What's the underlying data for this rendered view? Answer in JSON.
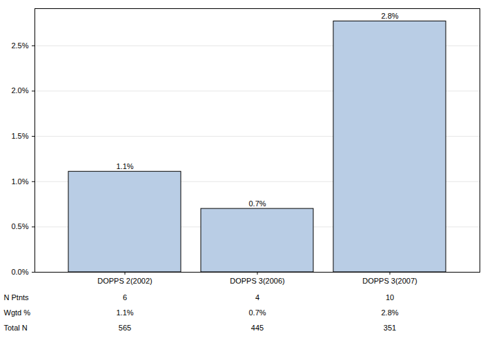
{
  "chart_data": {
    "type": "bar",
    "categories": [
      "DOPPS 2(2002)",
      "DOPPS 3(2006)",
      "DOPPS 3(2007)"
    ],
    "values": [
      1.11,
      0.7,
      2.77
    ],
    "value_labels": [
      "1.1%",
      "0.7%",
      "2.8%"
    ],
    "data_labels": true,
    "color": "#b9cde5",
    "ylim": [
      0,
      2.91
    ],
    "yticks": [
      {
        "value": 0,
        "label": "0.0%"
      },
      {
        "value": 0.5,
        "label": "0.5%"
      },
      {
        "value": 1,
        "label": "1.0%"
      },
      {
        "value": 1.5,
        "label": "1.5%"
      },
      {
        "value": 2,
        "label": "2.0%"
      },
      {
        "value": 2.5,
        "label": "2.5%"
      }
    ],
    "grid": true,
    "table_rows": [
      {
        "label": "N Ptnts",
        "cells": [
          "6",
          "4",
          "10"
        ]
      },
      {
        "label": "Wgtd %",
        "cells": [
          "1.1%",
          "0.7%",
          "2.8%"
        ]
      },
      {
        "label": "Total N",
        "cells": [
          "565",
          "445",
          "351"
        ]
      }
    ]
  }
}
